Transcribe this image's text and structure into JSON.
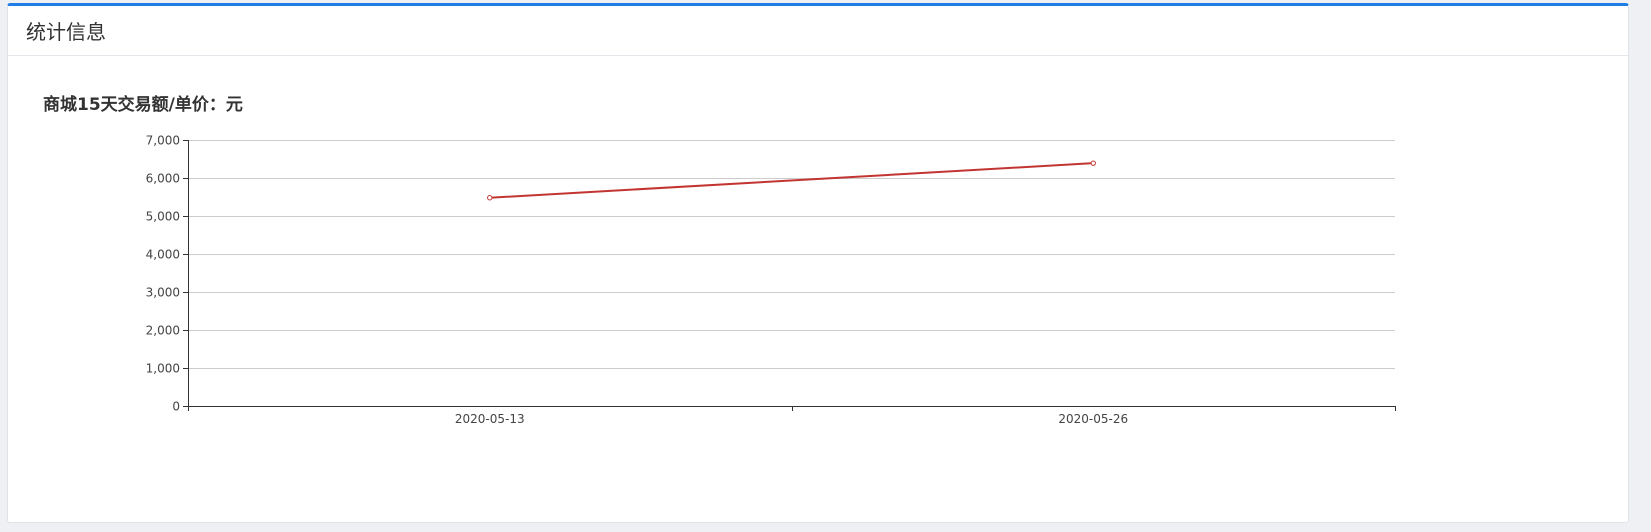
{
  "panel": {
    "title": "统计信息"
  },
  "chart_data": {
    "type": "line",
    "title": "商城15天交易额/单价：元",
    "categories": [
      "2020-05-13",
      "2020-05-26"
    ],
    "series": [
      {
        "values": [
          5480,
          6390
        ]
      }
    ],
    "ylim": [
      0,
      7000
    ],
    "yticks": [
      0,
      1000,
      2000,
      3000,
      4000,
      5000,
      6000,
      7000
    ],
    "ytick_labels": [
      "0",
      "1,000",
      "2,000",
      "3,000",
      "4,000",
      "5,000",
      "6,000",
      "7,000"
    ],
    "grid": true,
    "line_color": "#c23531",
    "grid_color": "#cccccc",
    "axis_color": "#333333"
  }
}
